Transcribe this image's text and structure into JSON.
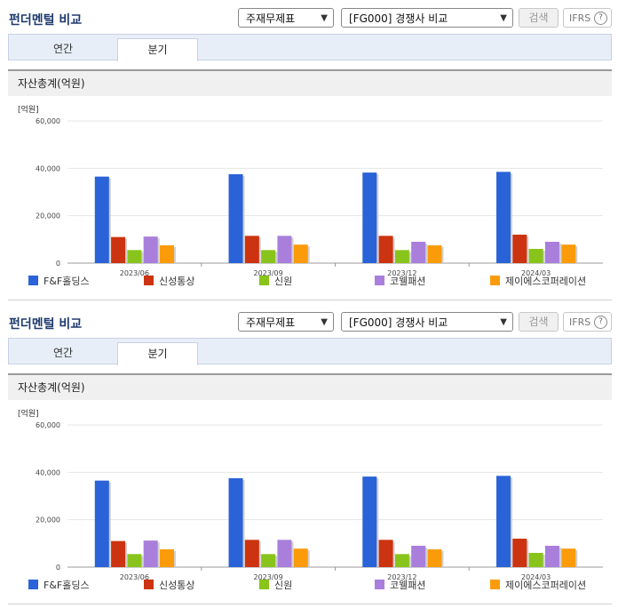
{
  "panels": [
    {
      "title": "펀더멘털 비교",
      "select_type": "주재무제표",
      "select_compare": "[FG000] 경쟁사 비교",
      "search_label": "검색",
      "ifrs_label": "IFRS",
      "help_icon": "?",
      "tabs": [
        "연간",
        "분기"
      ],
      "active_tab": "분기",
      "section_title": "자산총계(억원)"
    },
    {
      "title": "펀더멘털 비교",
      "select_type": "주재무제표",
      "select_compare": "[FG000] 경쟁사 비교",
      "search_label": "검색",
      "ifrs_label": "IFRS",
      "help_icon": "?",
      "tabs": [
        "연간",
        "분기"
      ],
      "active_tab": "분기",
      "section_title": "자산총계(억원)"
    }
  ],
  "chart_data": [
    {
      "type": "bar",
      "unit_label": "[억원]",
      "categories": [
        "2023/06",
        "2023/09",
        "2023/12",
        "2024/03"
      ],
      "ylim": [
        0,
        60000
      ],
      "yticks": [
        "60,000",
        "40,000",
        "20,000",
        "0"
      ],
      "series": [
        {
          "name": "F&F홀딩스",
          "color": "#2a63d8",
          "values": [
            36500,
            37500,
            38200,
            38500
          ]
        },
        {
          "name": "신성통상",
          "color": "#cc3311",
          "values": [
            11000,
            11500,
            11500,
            12000
          ]
        },
        {
          "name": "신원",
          "color": "#88c41c",
          "values": [
            5500,
            5500,
            5500,
            6000
          ]
        },
        {
          "name": "코웰패션",
          "color": "#a97fdb",
          "values": [
            11200,
            11500,
            9000,
            9000
          ]
        },
        {
          "name": "제이에스코퍼레이션",
          "color": "#fb9b0a",
          "values": [
            7500,
            7800,
            7500,
            7800
          ]
        }
      ]
    },
    {
      "type": "bar",
      "unit_label": "[억원]",
      "categories": [
        "2023/06",
        "2023/09",
        "2023/12",
        "2024/03"
      ],
      "ylim": [
        0,
        60000
      ],
      "yticks": [
        "60,000",
        "40,000",
        "20,000",
        "0"
      ],
      "series": [
        {
          "name": "F&F홀딩스",
          "color": "#2a63d8",
          "values": [
            36500,
            37500,
            38200,
            38500
          ]
        },
        {
          "name": "신성통상",
          "color": "#cc3311",
          "values": [
            11000,
            11500,
            11500,
            12000
          ]
        },
        {
          "name": "신원",
          "color": "#88c41c",
          "values": [
            5500,
            5500,
            5500,
            6000
          ]
        },
        {
          "name": "코웰패션",
          "color": "#a97fdb",
          "values": [
            11200,
            11500,
            9000,
            9000
          ]
        },
        {
          "name": "제이에스코퍼레이션",
          "color": "#fb9b0a",
          "values": [
            7500,
            7800,
            7500,
            7800
          ]
        }
      ]
    }
  ]
}
